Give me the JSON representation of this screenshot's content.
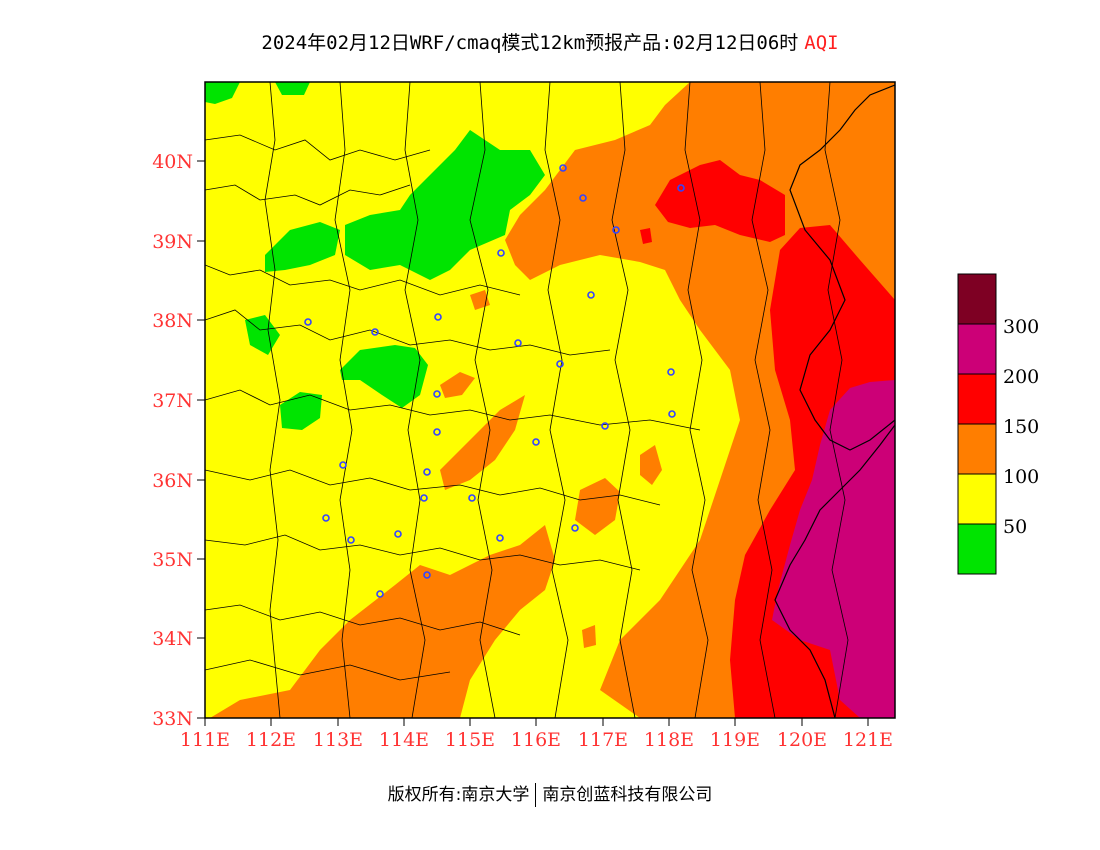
{
  "title": {
    "main": "2024年02月12日WRF/cmaq模式12km预报产品:02月12日06时",
    "product": "AQI"
  },
  "colors": {
    "good": "#00e400",
    "moderate": "#ffff00",
    "usg": "#ff7e00",
    "unhealthy": "#ff0000",
    "very_unhealthy": "#cc0077",
    "hazardous": "#7e0023",
    "label_red": "#ff3333"
  },
  "map": {
    "lon_range": [
      111,
      121.4
    ],
    "lat_range": [
      33,
      41
    ],
    "lat_ticks": [
      "33N",
      "34N",
      "35N",
      "36N",
      "37N",
      "38N",
      "39N",
      "40N"
    ],
    "lon_ticks": [
      "111E",
      "112E",
      "113E",
      "114E",
      "115E",
      "116E",
      "117E",
      "118E",
      "119E",
      "120E",
      "121E"
    ]
  },
  "legend": {
    "labels": [
      "300",
      "200",
      "150",
      "100",
      "50"
    ]
  },
  "footer": {
    "copyright": "版权所有:南京大学",
    "company": "南京创蓝科技有限公司"
  }
}
